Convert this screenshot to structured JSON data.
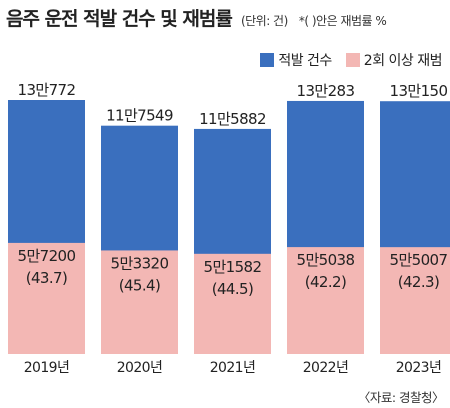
{
  "header": {
    "title": "음주 운전 적발 건수 및 재범률",
    "unit": "(단위: 건)",
    "note": "*( )안은 재범률 %"
  },
  "legend": [
    {
      "label": "적발 건수",
      "color": "#3a6fbe"
    },
    {
      "label": "2회 이상 재범",
      "color": "#f3b7b4"
    }
  ],
  "source": "〈자료: 경찰청〉",
  "chart_data": {
    "type": "bar",
    "categories": [
      "2019년",
      "2020년",
      "2021년",
      "2022년",
      "2023년"
    ],
    "series": [
      {
        "name": "적발 건수",
        "values": [
          130772,
          117549,
          115882,
          130283,
          130150
        ],
        "labels": [
          "13만772",
          "11만7549",
          "11만5882",
          "13만283",
          "13만150"
        ],
        "color": "#3a6fbe"
      },
      {
        "name": "2회 이상 재범",
        "values": [
          57200,
          53320,
          51582,
          55038,
          55007
        ],
        "labels": [
          "5만7200",
          "5만3320",
          "5만1582",
          "5만5038",
          "5만5007"
        ],
        "color": "#f3b7b4"
      }
    ],
    "rates": [
      "(43.7)",
      "(45.4)",
      "(44.5)",
      "(42.2)",
      "(42.3)"
    ],
    "layout": "overlapping",
    "ylim": [
      0,
      130772
    ],
    "grid": false
  }
}
